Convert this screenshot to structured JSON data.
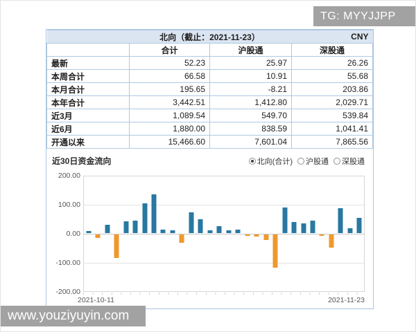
{
  "watermarks": {
    "top_right": "TG: MYYJJPP",
    "bottom_left": "www.youziyuyin.com"
  },
  "table": {
    "title": "北向（截止：2021-11-23）",
    "currency": "CNY",
    "columns": [
      "合计",
      "沪股通",
      "深股通"
    ],
    "rows": [
      {
        "label": "最新",
        "values": [
          "52.23",
          "25.97",
          "26.26"
        ]
      },
      {
        "label": "本周合计",
        "values": [
          "66.58",
          "10.91",
          "55.68"
        ]
      },
      {
        "label": "本月合计",
        "values": [
          "195.65",
          "-8.21",
          "203.86"
        ]
      },
      {
        "label": "本年合计",
        "values": [
          "3,442.51",
          "1,412.80",
          "2,029.71"
        ]
      },
      {
        "label": "近3月",
        "values": [
          "1,089.54",
          "549.70",
          "539.84"
        ]
      },
      {
        "label": "近6月",
        "values": [
          "1,880.00",
          "838.59",
          "1,041.41"
        ]
      },
      {
        "label": "开通以来",
        "values": [
          "15,466.60",
          "7,601.04",
          "7,865.56"
        ]
      }
    ]
  },
  "chart": {
    "title": "近30日资金流向",
    "legend": [
      {
        "label": "北向(合计)",
        "selected": true
      },
      {
        "label": "沪股通",
        "selected": false
      },
      {
        "label": "深股通",
        "selected": false
      }
    ]
  },
  "chart_data": {
    "type": "bar",
    "title": "近30日资金流向",
    "series_shown": "北向(合计)",
    "x_start_label": "2021-10-11",
    "x_end_label": "2021-11-23",
    "ylim": [
      -200,
      200
    ],
    "yticks": [
      "200.00",
      "100.00",
      "0.00",
      "-100.00",
      "-200.00"
    ],
    "grid": true,
    "positive_color": "#2878a2",
    "negative_color": "#f0982d",
    "values": [
      8,
      -12,
      28,
      -80,
      40,
      42,
      103,
      133,
      12,
      9,
      -28,
      71,
      48,
      10,
      24,
      9,
      13,
      -3,
      -7,
      -18,
      -115,
      87,
      37,
      34,
      42,
      -3,
      -45,
      85,
      16,
      52.23
    ]
  }
}
